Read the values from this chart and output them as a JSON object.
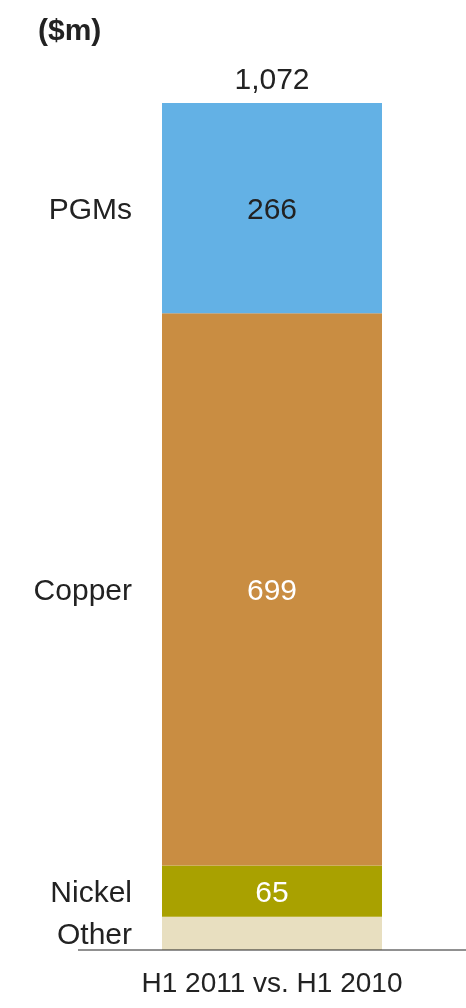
{
  "chart_data": {
    "type": "bar",
    "title": "($m)",
    "stacked": true,
    "categories": [
      "H1 2011 vs. H1 2010"
    ],
    "series": [
      {
        "name": "Other",
        "color": "#e8dfc0",
        "values": [
          42
        ],
        "value_labels": [
          null
        ]
      },
      {
        "name": "Nickel",
        "color": "#a9a100",
        "values": [
          65
        ],
        "value_labels": [
          "65"
        ]
      },
      {
        "name": "Copper",
        "color": "#c98d42",
        "values": [
          699
        ],
        "value_labels": [
          "699"
        ]
      },
      {
        "name": "PGMs",
        "color": "#63b1e5",
        "values": [
          266
        ],
        "value_labels": [
          "266"
        ]
      }
    ],
    "totals": [
      "1,072"
    ],
    "grid": false,
    "legend": false
  }
}
